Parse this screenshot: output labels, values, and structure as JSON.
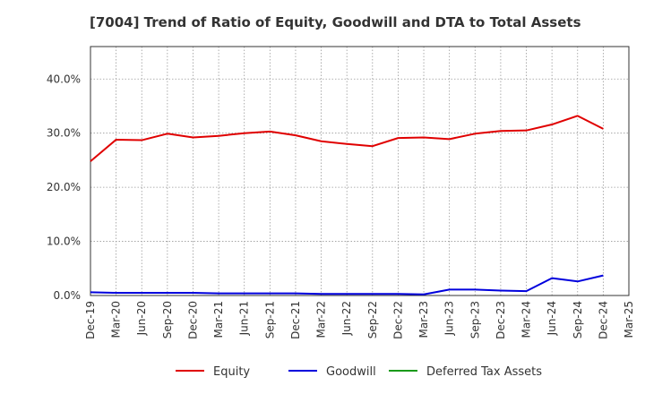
{
  "chart_data": {
    "type": "line",
    "title": "[7004]  Trend of Ratio of Equity, Goodwill and DTA to Total Assets",
    "xlabel": "",
    "ylabel": "",
    "ylim": [
      0,
      46
    ],
    "yticks": [
      0,
      10,
      20,
      30,
      40
    ],
    "ytick_labels": [
      "0.0%",
      "10.0%",
      "20.0%",
      "30.0%",
      "40.0%"
    ],
    "categories": [
      "Dec-19",
      "Mar-20",
      "Jun-20",
      "Sep-20",
      "Dec-20",
      "Mar-21",
      "Jun-21",
      "Sep-21",
      "Dec-21",
      "Mar-22",
      "Jun-22",
      "Sep-22",
      "Dec-22",
      "Mar-23",
      "Jun-23",
      "Sep-23",
      "Dec-23",
      "Mar-24",
      "Jun-24",
      "Sep-24",
      "Dec-24",
      "Mar-25"
    ],
    "grid": true,
    "legend_position": "bottom",
    "series": [
      {
        "name": "Equity",
        "color": "#e00000",
        "values": [
          24.8,
          28.8,
          28.7,
          29.9,
          29.2,
          29.5,
          30.0,
          30.3,
          29.6,
          28.5,
          28.0,
          27.6,
          29.1,
          29.2,
          28.9,
          29.9,
          30.4,
          30.5,
          31.6,
          33.2,
          30.8,
          null
        ]
      },
      {
        "name": "Goodwill",
        "color": "#0000dd",
        "values": [
          0.6,
          0.5,
          0.5,
          0.5,
          0.5,
          0.4,
          0.4,
          0.4,
          0.4,
          0.3,
          0.3,
          0.3,
          0.3,
          0.2,
          1.1,
          1.1,
          0.9,
          0.8,
          3.2,
          2.6,
          3.7,
          null
        ]
      },
      {
        "name": "Deferred Tax Assets",
        "color": "#1a9a1a",
        "values": [
          null,
          null,
          null,
          null,
          null,
          null,
          null,
          null,
          null,
          null,
          null,
          null,
          null,
          null,
          null,
          null,
          null,
          null,
          null,
          null,
          null,
          null
        ]
      }
    ]
  }
}
